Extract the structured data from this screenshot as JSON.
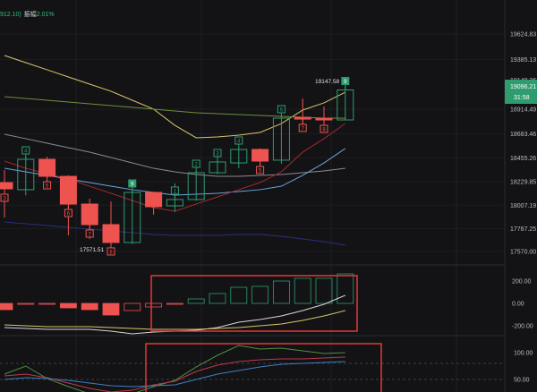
{
  "header": {
    "prev_value": "912.10)",
    "amplitude_label": "振幅",
    "amplitude_value": "2.01%"
  },
  "colors": {
    "up": "#2e9c6e",
    "down": "#ef5350",
    "background": "#131316",
    "highlight_box": "#e53935"
  },
  "chart_data": [
    {
      "type": "candlestick",
      "pane": "price",
      "ylim": [
        17570.0,
        19624.83
      ],
      "y_ticks": [
        "19624.83",
        "19385.13",
        "18914.49",
        "18683.46",
        "18455.26",
        "18229.85",
        "18007.19",
        "17787.25",
        "17570.00"
      ],
      "candles": [
        {
          "o": 18221,
          "h": 18340,
          "l": 17891,
          "c": 18162,
          "count": "3"
        },
        {
          "o": 18154,
          "h": 18466,
          "l": 18100,
          "c": 18441,
          "count": "4"
        },
        {
          "o": 18441,
          "h": 18466,
          "l": 18270,
          "c": 18280,
          "count": "5"
        },
        {
          "o": 18280,
          "h": 18290,
          "l": 17722,
          "c": 18018,
          "count": "6"
        },
        {
          "o": 18018,
          "h": 18069,
          "l": 17688,
          "c": 17824,
          "count": "7"
        },
        {
          "o": 17824,
          "h": 18043,
          "l": 17571.51,
          "c": 17655,
          "count": "8"
        },
        {
          "o": 17655,
          "h": 18160,
          "l": 17640,
          "c": 18128,
          "count": "9",
          "count_filled": true
        },
        {
          "o": 18128,
          "h": 18135,
          "l": 17917,
          "c": 17993,
          "count": ""
        },
        {
          "o": 18001,
          "h": 18213,
          "l": 17942,
          "c": 18061,
          "count": "1"
        },
        {
          "o": 18061,
          "h": 18330,
          "l": 18050,
          "c": 18314,
          "count": "2"
        },
        {
          "o": 18314,
          "h": 18440,
          "l": 18300,
          "c": 18416,
          "count": "3"
        },
        {
          "o": 18407,
          "h": 18545,
          "l": 18357,
          "c": 18534,
          "count": "4"
        },
        {
          "o": 18534,
          "h": 18545,
          "l": 18357,
          "c": 18424,
          "count": "5"
        },
        {
          "o": 18433,
          "h": 18840,
          "l": 18399,
          "c": 18830,
          "count": "6"
        },
        {
          "o": 18838,
          "h": 19016,
          "l": 18779,
          "c": 18822,
          "count": "7"
        },
        {
          "o": 18830,
          "h": 18940,
          "l": 18770,
          "c": 18813,
          "count": "8"
        },
        {
          "o": 18813,
          "h": 19147.58,
          "l": 18813,
          "c": 19096.21,
          "count": "9",
          "count_filled": true
        }
      ],
      "ma_lines": [
        {
          "color": "#d9c46a",
          "values": [
            19422,
            19354,
            19287,
            19219,
            19151,
            19084,
            18999,
            18915,
            18762,
            18644,
            18652,
            18669,
            18695,
            18779,
            18906,
            18974,
            19075
          ]
        },
        {
          "color": "#6f8f3a",
          "values": [
            19033,
            19016,
            18999,
            18982,
            18965,
            18948,
            18932,
            18915,
            18898,
            18881,
            18872,
            18864,
            18855,
            18847,
            18838,
            18830,
            18830
          ]
        },
        {
          "color": "#8a8a90",
          "values": [
            18678,
            18636,
            18593,
            18551,
            18509,
            18458,
            18407,
            18356,
            18323,
            18297,
            18280,
            18280,
            18289,
            18297,
            18314,
            18331,
            18356
          ]
        },
        {
          "color": "#6aa6d8",
          "values": [
            18356,
            18323,
            18289,
            18255,
            18221,
            18187,
            18154,
            18128,
            18103,
            18111,
            18120,
            18137,
            18154,
            18187,
            18289,
            18407,
            18543
          ]
        },
        {
          "color": "#a32a2a",
          "values": [
            18424,
            18356,
            18306,
            18255,
            18187,
            18120,
            18052,
            17984,
            17951,
            18018,
            18086,
            18154,
            18221,
            18323,
            18509,
            18636,
            18779
          ]
        },
        {
          "color": "#2a2f7a",
          "values": [
            17849,
            17832,
            17815,
            17798,
            17781,
            17765,
            17748,
            17731,
            17722,
            17722,
            17722,
            17731,
            17731,
            17714,
            17688,
            17663,
            17629
          ]
        }
      ],
      "annotations": {
        "high": "19147.58",
        "low": "17571.51"
      },
      "price_labels": {
        "upper": "19148.36",
        "last": "19096.21",
        "countdown": "31:58"
      }
    },
    {
      "type": "bar",
      "pane": "macd",
      "ylim": [
        -200,
        200
      ],
      "y_ticks": [
        "200.00",
        "0.00",
        "-200.00"
      ],
      "histogram": [
        -56,
        -8,
        -6,
        -40,
        -56,
        -104,
        -64,
        -32,
        -4,
        40,
        88,
        144,
        152,
        200,
        224,
        224,
        264
      ],
      "series": [
        {
          "color": "#d8d8d8",
          "values": [
            -216,
            -224,
            -232,
            -232,
            -232,
            -248,
            -272,
            -256,
            -248,
            -240,
            -216,
            -168,
            -144,
            -112,
            -64,
            -8,
            72
          ]
        },
        {
          "color": "#d9c46a",
          "values": [
            -192,
            -200,
            -208,
            -208,
            -208,
            -216,
            -224,
            -232,
            -232,
            -232,
            -224,
            -216,
            -200,
            -184,
            -152,
            -112,
            -64
          ]
        }
      ]
    },
    {
      "type": "line",
      "pane": "kdj",
      "y_ticks": [
        "100.00",
        "50.00"
      ],
      "dashed_levels": [
        80,
        50
      ],
      "series": [
        {
          "color": "#4f8f3a",
          "values": [
            60,
            75,
            51.7,
            36.7,
            23.3,
            15,
            23.3,
            36.7,
            48.3,
            73.3,
            95,
            113.3,
            106.7,
            108.3,
            103.3,
            98.3,
            100
          ]
        },
        {
          "color": "#c0394a",
          "values": [
            56.7,
            60,
            53.3,
            43.3,
            33.3,
            26.7,
            30,
            40,
            46.7,
            65,
            76.7,
            83.3,
            86.7,
            88.3,
            88.3,
            90,
            91.7
          ]
        },
        {
          "color": "#3f7fc0",
          "values": [
            50,
            53.3,
            51.7,
            48.3,
            43.3,
            38.3,
            36.7,
            38.3,
            40,
            50,
            60,
            66.7,
            73.3,
            78.3,
            80,
            81.7,
            83.3
          ]
        }
      ]
    }
  ]
}
